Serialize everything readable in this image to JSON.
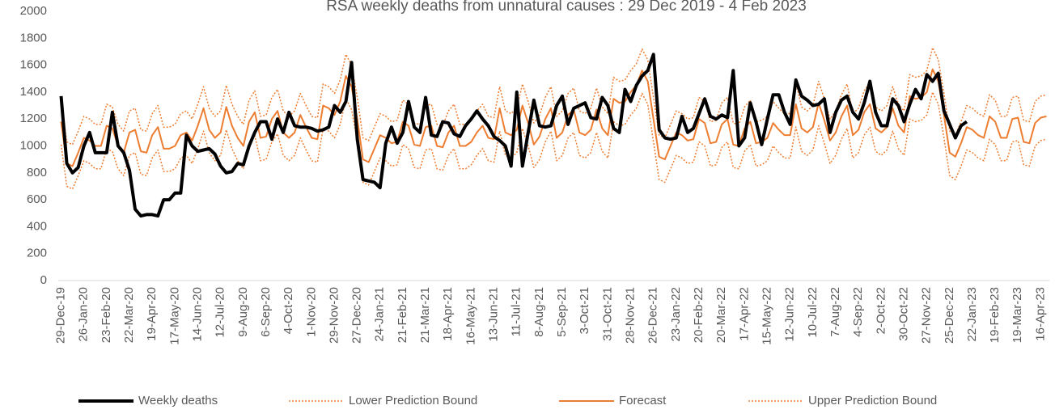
{
  "chart_data": {
    "type": "line",
    "title": "RSA weekly deaths from unnatural causes : 29 Dec 2019 - 4 Feb 2023",
    "categories": [
      "29-Dec-19",
      null,
      null,
      null,
      "26-Jan-20",
      null,
      null,
      null,
      "23-Feb-20",
      null,
      null,
      null,
      "22-Mar-20",
      null,
      null,
      null,
      "19-Apr-20",
      null,
      null,
      null,
      "17-May-20",
      null,
      null,
      null,
      "14-Jun-20",
      null,
      null,
      null,
      "12-Jul-20",
      null,
      null,
      null,
      "9-Aug-20",
      null,
      null,
      null,
      "6-Sep-20",
      null,
      null,
      null,
      "4-Oct-20",
      null,
      null,
      null,
      "1-Nov-20",
      null,
      null,
      null,
      "29-Nov-20",
      null,
      null,
      null,
      "27-Dec-20",
      null,
      null,
      null,
      "24-Jan-21",
      null,
      null,
      null,
      "21-Feb-21",
      null,
      null,
      null,
      "21-Mar-21",
      null,
      null,
      null,
      "18-Apr-21",
      null,
      null,
      null,
      "16-May-21",
      null,
      null,
      null,
      "13-Jun-21",
      null,
      null,
      null,
      "11-Jul-21",
      null,
      null,
      null,
      "8-Aug-21",
      null,
      null,
      null,
      "5-Sep-21",
      null,
      null,
      null,
      "3-Oct-21",
      null,
      null,
      null,
      "31-Oct-21",
      null,
      null,
      null,
      "28-Nov-21",
      null,
      null,
      null,
      "26-Dec-21",
      null,
      null,
      null,
      "23-Jan-22",
      null,
      null,
      null,
      "20-Feb-22",
      null,
      null,
      null,
      "20-Mar-22",
      null,
      null,
      null,
      "17-Apr-22",
      null,
      null,
      null,
      "15-May-22",
      null,
      null,
      null,
      "12-Jun-22",
      null,
      null,
      null,
      "10-Jul-22",
      null,
      null,
      null,
      "7-Aug-22",
      null,
      null,
      null,
      "4-Sep-22",
      null,
      null,
      null,
      "2-Oct-22",
      null,
      null,
      null,
      "30-Oct-22",
      null,
      null,
      null,
      "27-Nov-22",
      null,
      null,
      null,
      "25-Dec-22",
      null,
      null,
      null,
      "22-Jan-23",
      null,
      null,
      null,
      "19-Feb-23",
      null,
      null,
      null,
      "19-Mar-23",
      null,
      null,
      null,
      "16-Apr-23",
      null
    ],
    "series": [
      {
        "name": "Weekly deaths",
        "color": "#000000",
        "width": 4,
        "style": "solid",
        "values": [
          1370,
          870,
          800,
          840,
          1000,
          1100,
          950,
          950,
          950,
          1250,
          1000,
          950,
          820,
          530,
          480,
          490,
          490,
          480,
          600,
          600,
          650,
          650,
          1080,
          1000,
          960,
          970,
          980,
          940,
          850,
          800,
          810,
          870,
          860,
          1000,
          1100,
          1180,
          1180,
          1050,
          1200,
          1100,
          1250,
          1150,
          1140,
          1140,
          1130,
          1110,
          1120,
          1140,
          1300,
          1250,
          1330,
          1620,
          1050,
          750,
          740,
          730,
          690,
          1020,
          1140,
          1020,
          1100,
          1330,
          1140,
          1100,
          1360,
          1080,
          1070,
          1180,
          1170,
          1090,
          1070,
          1150,
          1200,
          1260,
          1200,
          1150,
          1070,
          1040,
          1000,
          850,
          1400,
          850,
          1100,
          1340,
          1150,
          1140,
          1150,
          1300,
          1370,
          1160,
          1280,
          1300,
          1320,
          1210,
          1200,
          1360,
          1300,
          1130,
          1100,
          1420,
          1330,
          1450,
          1520,
          1560,
          1680,
          1120,
          1060,
          1050,
          1060,
          1220,
          1100,
          1130,
          1240,
          1350,
          1220,
          1200,
          1230,
          1210,
          1560,
          1000,
          1060,
          1320,
          1180,
          1010,
          1200,
          1380,
          1380,
          1250,
          1160,
          1490,
          1370,
          1340,
          1300,
          1310,
          1350,
          1100,
          1250,
          1340,
          1370,
          1250,
          1200,
          1320,
          1480,
          1250,
          1150,
          1150,
          1350,
          1300,
          1180,
          1310,
          1420,
          1350,
          1530,
          1480,
          1540,
          1260,
          1160,
          1060,
          1150,
          1180,
          null,
          null,
          null,
          null,
          null,
          null,
          null,
          null,
          null,
          null,
          null,
          null,
          null,
          null
        ]
      },
      {
        "name": "Lower Prediction Bound",
        "color": "#ed7d31",
        "width": 1.5,
        "style": "dotted",
        "values": [
          1010,
          700,
          680,
          780,
          890,
          870,
          830,
          830,
          980,
          960,
          830,
          780,
          930,
          950,
          790,
          780,
          910,
          970,
          810,
          810,
          830,
          910,
          930,
          870,
          980,
          1110,
          950,
          890,
          930,
          1120,
          980,
          890,
          830,
          1010,
          1080,
          890,
          900,
          1030,
          1090,
          930,
          890,
          930,
          1060,
          970,
          890,
          880,
          1130,
          1110,
          1060,
          1160,
          1350,
          1270,
          1030,
          730,
          710,
          810,
          910,
          890,
          850,
          860,
          1010,
          980,
          840,
          830,
          970,
          980,
          830,
          820,
          930,
          980,
          830,
          830,
          860,
          930,
          980,
          890,
          880,
          1110,
          930,
          910,
          950,
          1130,
          1000,
          840,
          900,
          1030,
          1110,
          890,
          930,
          1060,
          1100,
          930,
          910,
          950,
          1100,
          960,
          910,
          1180,
          1150,
          1160,
          1230,
          1280,
          1390,
          1310,
          1030,
          750,
          730,
          830,
          930,
          910,
          870,
          880,
          1030,
          1000,
          850,
          860,
          990,
          1030,
          840,
          830,
          960,
          1010,
          850,
          860,
          890,
          1000,
          950,
          910,
          910,
          1140,
          960,
          930,
          970,
          1150,
          1020,
          870,
          930,
          1050,
          1130,
          910,
          950,
          1080,
          1140,
          960,
          930,
          970,
          1110,
          980,
          930,
          1200,
          1180,
          1190,
          1230,
          1400,
          1310,
          1060,
          780,
          750,
          850,
          970,
          950,
          910,
          890,
          1050,
          1010,
          890,
          890,
          1030,
          1040,
          860,
          850,
          1000,
          1040,
          1050
        ]
      },
      {
        "name": "Forecast",
        "color": "#ed7d31",
        "width": 2,
        "style": "solid",
        "values": [
          1180,
          870,
          850,
          950,
          1060,
          1040,
          1000,
          1000,
          1150,
          1130,
          1000,
          950,
          1100,
          1120,
          960,
          950,
          1080,
          1140,
          980,
          980,
          1000,
          1080,
          1100,
          1040,
          1150,
          1280,
          1120,
          1060,
          1100,
          1290,
          1150,
          1060,
          1000,
          1180,
          1250,
          1060,
          1070,
          1200,
          1260,
          1100,
          1060,
          1100,
          1230,
          1140,
          1060,
          1050,
          1300,
          1280,
          1230,
          1330,
          1520,
          1440,
          1200,
          900,
          880,
          980,
          1080,
          1060,
          1020,
          1030,
          1180,
          1150,
          1010,
          1000,
          1140,
          1150,
          1000,
          990,
          1100,
          1150,
          1000,
          1000,
          1030,
          1100,
          1150,
          1060,
          1050,
          1280,
          1100,
          1080,
          1120,
          1300,
          1170,
          1010,
          1070,
          1200,
          1280,
          1060,
          1100,
          1230,
          1270,
          1100,
          1080,
          1120,
          1270,
          1130,
          1080,
          1350,
          1320,
          1330,
          1400,
          1450,
          1560,
          1480,
          1200,
          920,
          900,
          1000,
          1100,
          1080,
          1040,
          1050,
          1200,
          1170,
          1020,
          1030,
          1160,
          1200,
          1010,
          1000,
          1130,
          1180,
          1020,
          1030,
          1060,
          1170,
          1120,
          1080,
          1080,
          1310,
          1130,
          1100,
          1140,
          1320,
          1190,
          1040,
          1100,
          1220,
          1300,
          1080,
          1120,
          1250,
          1310,
          1130,
          1100,
          1140,
          1280,
          1150,
          1100,
          1370,
          1350,
          1360,
          1400,
          1570,
          1480,
          1230,
          950,
          920,
          1020,
          1140,
          1120,
          1080,
          1060,
          1220,
          1180,
          1060,
          1060,
          1200,
          1210,
          1030,
          1020,
          1170,
          1210,
          1220
        ]
      },
      {
        "name": "Upper Prediction Bound",
        "color": "#ed7d31",
        "width": 1.5,
        "style": "dotted",
        "values": [
          1340,
          1030,
          1010,
          1110,
          1220,
          1200,
          1160,
          1160,
          1310,
          1290,
          1160,
          1110,
          1260,
          1280,
          1120,
          1110,
          1240,
          1300,
          1140,
          1140,
          1160,
          1240,
          1260,
          1200,
          1310,
          1440,
          1280,
          1220,
          1260,
          1450,
          1310,
          1220,
          1160,
          1340,
          1410,
          1220,
          1230,
          1360,
          1420,
          1260,
          1220,
          1260,
          1390,
          1300,
          1220,
          1210,
          1460,
          1440,
          1390,
          1490,
          1680,
          1600,
          1360,
          1060,
          1040,
          1140,
          1240,
          1220,
          1180,
          1190,
          1340,
          1310,
          1170,
          1160,
          1300,
          1310,
          1160,
          1150,
          1260,
          1310,
          1160,
          1160,
          1190,
          1260,
          1310,
          1220,
          1210,
          1440,
          1260,
          1240,
          1280,
          1460,
          1330,
          1170,
          1230,
          1360,
          1440,
          1220,
          1260,
          1390,
          1430,
          1260,
          1240,
          1280,
          1430,
          1290,
          1240,
          1510,
          1480,
          1490,
          1560,
          1610,
          1720,
          1640,
          1360,
          1080,
          1060,
          1160,
          1260,
          1240,
          1200,
          1210,
          1360,
          1330,
          1180,
          1190,
          1320,
          1360,
          1170,
          1160,
          1290,
          1340,
          1180,
          1190,
          1220,
          1330,
          1280,
          1240,
          1240,
          1470,
          1290,
          1260,
          1300,
          1480,
          1350,
          1200,
          1260,
          1380,
          1460,
          1240,
          1280,
          1410,
          1470,
          1290,
          1260,
          1300,
          1440,
          1310,
          1260,
          1530,
          1510,
          1520,
          1560,
          1730,
          1640,
          1390,
          1110,
          1080,
          1180,
          1300,
          1280,
          1240,
          1220,
          1380,
          1340,
          1220,
          1220,
          1360,
          1370,
          1190,
          1180,
          1330,
          1370,
          1380
        ]
      }
    ],
    "ylim": [
      0,
      2000
    ],
    "yticks": [
      0,
      200,
      400,
      600,
      800,
      1000,
      1200,
      1400,
      1600,
      1800,
      2000
    ],
    "grid": false,
    "legend": "bottom"
  }
}
